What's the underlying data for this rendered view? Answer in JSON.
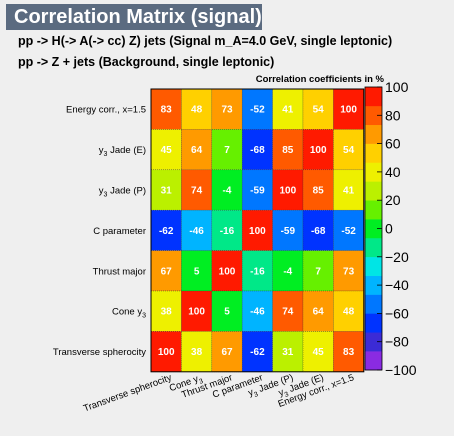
{
  "header": {
    "title": "Correlation Matrix (signal)",
    "line1": "pp -> H(-> A(-> cc)  Z) jets (Signal m_A=4.0 GeV, single leptonic)",
    "line2": "pp -> Z + jets (Background, single leptonic)"
  },
  "chart_data": {
    "type": "heatmap",
    "title": "Correlation coefficients in %",
    "variables": [
      "Transverse spherocity",
      "Cone y_3",
      "Thrust major",
      "C parameter",
      "y_3 Jade (P)",
      "y_3 Jade (E)",
      "Energy corr., x=1.5"
    ],
    "rows_top_to_bottom": [
      "Energy corr., x=1.5",
      "y_3 Jade (E)",
      "y_3 Jade (P)",
      "C parameter",
      "Thrust major",
      "Cone y_3",
      "Transverse spherocity"
    ],
    "columns_left_to_right": [
      "Transverse spherocity",
      "Cone y_3",
      "Thrust major",
      "C parameter",
      "y_3 Jade (P)",
      "y_3 Jade (E)",
      "Energy corr., x=1.5"
    ],
    "values": [
      [
        83,
        48,
        73,
        -52,
        41,
        54,
        100
      ],
      [
        45,
        64,
        7,
        -68,
        85,
        100,
        54
      ],
      [
        31,
        74,
        -4,
        -59,
        100,
        85,
        41
      ],
      [
        -62,
        -46,
        -16,
        100,
        -59,
        -68,
        -52
      ],
      [
        67,
        5,
        100,
        -16,
        -4,
        7,
        73
      ],
      [
        38,
        100,
        5,
        -46,
        74,
        64,
        48
      ],
      [
        100,
        38,
        67,
        -62,
        31,
        45,
        83
      ]
    ],
    "zlim": [
      -100,
      100
    ],
    "colorbar_ticks": [
      100,
      80,
      60,
      40,
      20,
      0,
      -20,
      -40,
      -60,
      -80,
      -100
    ],
    "colors_low_to_high": [
      "#8a2be2",
      "#3b2bd6",
      "#0033ff",
      "#0077ff",
      "#00b4ff",
      "#00e5e5",
      "#00e888",
      "#00ee22",
      "#66f000",
      "#bbf000",
      "#eef000",
      "#ffd000",
      "#ff9a00",
      "#ff5a00",
      "#ff1a00"
    ]
  }
}
